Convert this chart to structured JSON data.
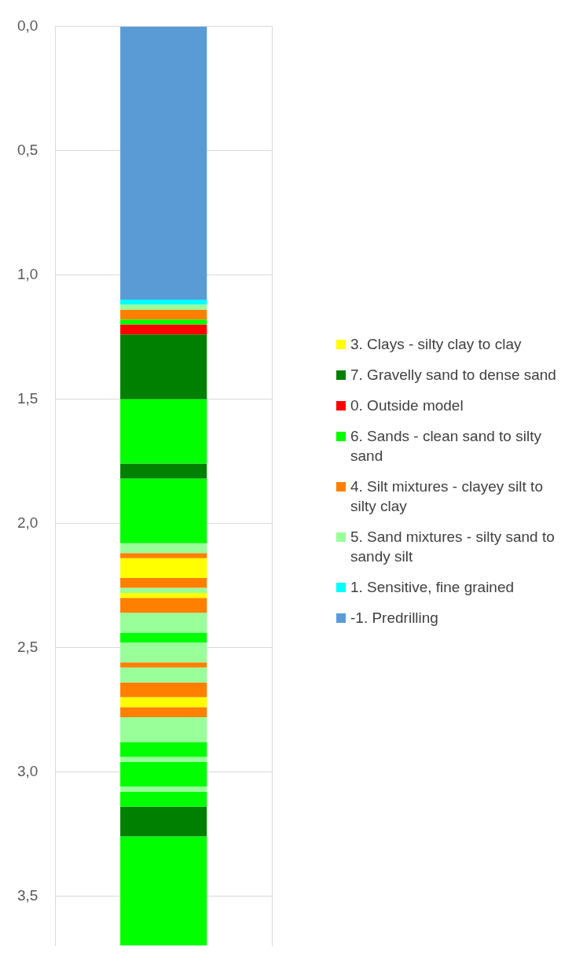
{
  "chart_data": {
    "type": "bar",
    "stacked": true,
    "categories": [
      null
    ],
    "ylim": [
      3.7,
      0
    ],
    "yticks": [
      {
        "value": 0,
        "label": "0,0"
      },
      {
        "value": 0.5,
        "label": "0,5"
      },
      {
        "value": 1,
        "label": "1,0"
      },
      {
        "value": 1.5,
        "label": "1,5"
      },
      {
        "value": 2,
        "label": "2,0"
      },
      {
        "value": 2.5,
        "label": "2,5"
      },
      {
        "value": 3,
        "label": "3,0"
      },
      {
        "value": 3.5,
        "label": "3,5"
      }
    ],
    "grid": true,
    "tick_labels": "y",
    "legend": "right",
    "series": [
      {
        "name": "-1. Predrilling",
        "color": "#5b9bd5",
        "values": [
          1.1
        ]
      },
      {
        "name": "1. Sensitive, fine grained",
        "color": "#00ffff",
        "values": [
          0.02
        ]
      },
      {
        "name": "5. Sand mixtures - silty sand to sandy silt",
        "color": "#99ff99",
        "values": [
          0.02
        ]
      },
      {
        "name": "4. Silt mixtures - clayey silt to silty clay",
        "color": "#ff8000",
        "values": [
          0.04
        ]
      },
      {
        "name": "6. Sands - clean sand to silty sand",
        "color": "#00ff00",
        "values": [
          0.02
        ]
      },
      {
        "name": "0. Outside model",
        "color": "#ff0000",
        "values": [
          0.04
        ]
      },
      {
        "name": "7. Gravelly sand to dense sand",
        "color": "#008000",
        "values": [
          0.26
        ]
      },
      {
        "color": "#00ff00",
        "values": [
          0.26
        ]
      },
      {
        "color": "#008000",
        "values": [
          0.06
        ]
      },
      {
        "color": "#00ff00",
        "values": [
          0.26
        ]
      },
      {
        "color": "#99ff99",
        "values": [
          0.04
        ]
      },
      {
        "color": "#ff8000",
        "values": [
          0.02
        ]
      },
      {
        "name": "3. Clays - silty clay to clay",
        "color": "#ffff00",
        "values": [
          0.08
        ]
      },
      {
        "color": "#ff8000",
        "values": [
          0.04
        ]
      },
      {
        "color": "#99ff99",
        "values": [
          0.02
        ]
      },
      {
        "color": "#ffff00",
        "values": [
          0.02
        ]
      },
      {
        "color": "#ff8000",
        "values": [
          0.06
        ]
      },
      {
        "color": "#99ff99",
        "values": [
          0.08
        ]
      },
      {
        "color": "#00ff00",
        "values": [
          0.04
        ]
      },
      {
        "color": "#99ff99",
        "values": [
          0.08
        ]
      },
      {
        "color": "#ff8000",
        "values": [
          0.02
        ]
      },
      {
        "color": "#99ff99",
        "values": [
          0.06
        ]
      },
      {
        "color": "#ff8000",
        "values": [
          0.06
        ]
      },
      {
        "color": "#ffff00",
        "values": [
          0.04
        ]
      },
      {
        "color": "#ff8000",
        "values": [
          0.04
        ]
      },
      {
        "color": "#99ff99",
        "values": [
          0.1
        ]
      },
      {
        "color": "#00ff00",
        "values": [
          0.06
        ]
      },
      {
        "color": "#99ff99",
        "values": [
          0.02
        ]
      },
      {
        "color": "#00ff00",
        "values": [
          0.1
        ]
      },
      {
        "color": "#99ff99",
        "values": [
          0.02
        ]
      },
      {
        "color": "#00ff00",
        "values": [
          0.06
        ]
      },
      {
        "color": "#008000",
        "values": [
          0.12
        ]
      },
      {
        "color": "#00ff00",
        "values": [
          0.44
        ]
      }
    ]
  }
}
